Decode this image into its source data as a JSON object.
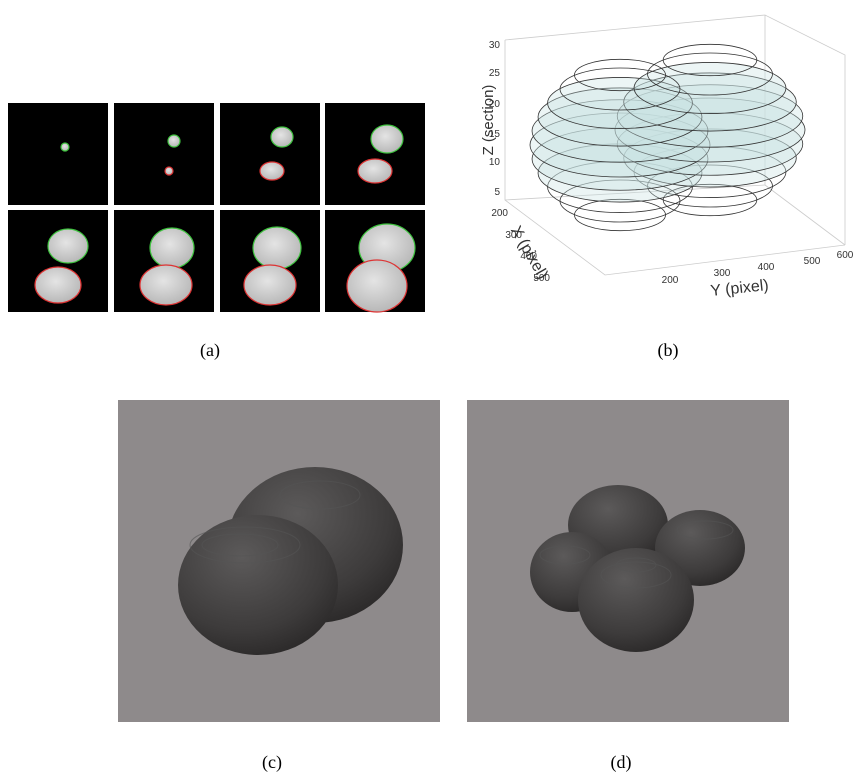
{
  "panels": [
    {
      "caption": "(a)"
    },
    {
      "caption": "(b)",
      "z_label": "Z (section)",
      "x_label": "X (pixel)",
      "y_label": "Y (pixel)",
      "z_ticks": [
        5,
        10,
        15,
        20,
        25,
        30
      ],
      "x_ticks": [
        200,
        300,
        400,
        500
      ],
      "y_ticks": [
        200,
        300,
        400,
        500,
        600
      ]
    },
    {
      "caption": "(c)"
    },
    {
      "caption": "(d)"
    }
  ]
}
